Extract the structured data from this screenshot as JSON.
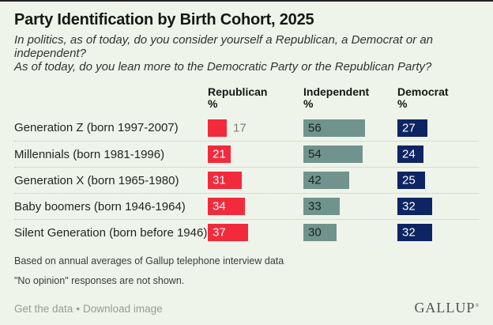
{
  "header": {
    "title": "Party Identification by Birth Cohort, 2025",
    "subtitle_line1": "In politics, as of today, do you consider yourself a Republican, a Democrat or an independent?",
    "subtitle_line2": "As of today, do you lean more to the Democratic Party or the Republican Party?"
  },
  "chart_data": {
    "type": "bar",
    "orientation": "horizontal",
    "unit": "%",
    "categories": [
      "Generation Z (born 1997-2007)",
      "Millennials (born 1981-1996)",
      "Generation X (born 1965-1980)",
      "Baby boomers (born 1946-1964)",
      "Silent Generation (born before 1946)"
    ],
    "series": [
      {
        "name": "Republican",
        "color": "#f12b3c",
        "label_color": "#ffffff",
        "values": [
          17,
          21,
          31,
          34,
          37
        ]
      },
      {
        "name": "Independent",
        "color": "#71938e",
        "label_color": "#16211f",
        "values": [
          56,
          54,
          42,
          33,
          30
        ]
      },
      {
        "name": "Democrat",
        "color": "#0e2563",
        "label_color": "#ffffff",
        "values": [
          27,
          24,
          25,
          32,
          32
        ]
      }
    ],
    "outside_label_color": "#78807a",
    "xlim": [
      0,
      60
    ],
    "value_labels": "inside-start",
    "grid": "off",
    "legend_position": "column-headers"
  },
  "footnotes": [
    "Based on annual averages of Gallup telephone interview data",
    "\"No opinion\" responses are not shown."
  ],
  "footer": {
    "get_data_label": "Get the data",
    "separator": "•",
    "download_label": "Download image",
    "brand": "GALLUP",
    "brand_mark": "®"
  }
}
